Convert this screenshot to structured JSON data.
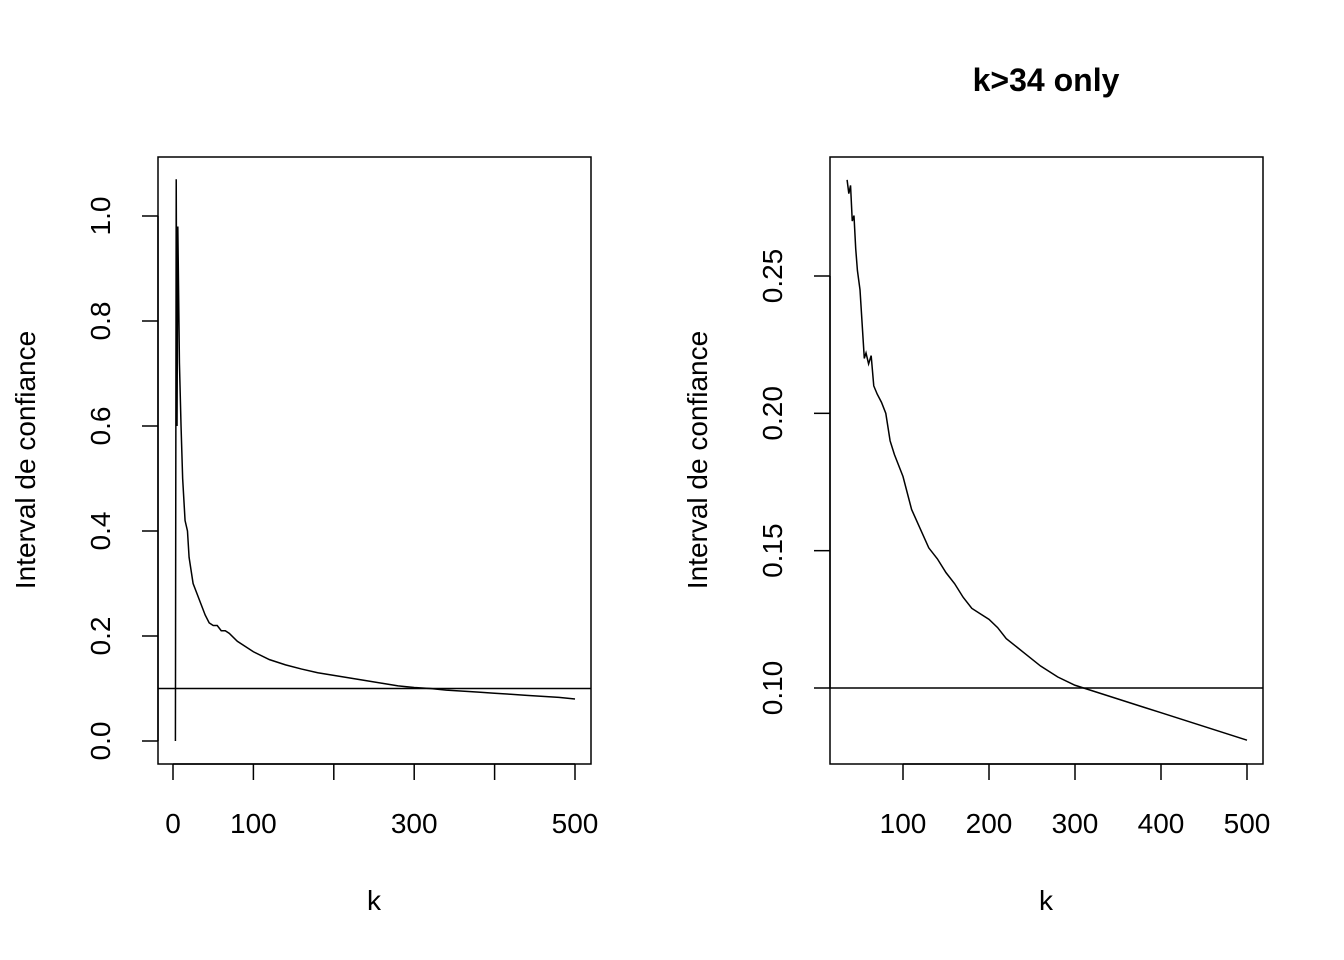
{
  "chart_data": [
    {
      "type": "line",
      "title": "",
      "xlabel": "k",
      "ylabel": "Interval de confiance",
      "xlim": [
        1,
        500
      ],
      "ylim": [
        0,
        1.07
      ],
      "xticks": [
        0,
        100,
        200,
        300,
        400,
        500
      ],
      "xtick_labels": [
        "0",
        "100",
        "",
        "300",
        "",
        "500"
      ],
      "yticks": [
        0.0,
        0.2,
        0.4,
        0.6,
        0.8,
        1.0
      ],
      "ytick_labels": [
        "0.0",
        "0.2",
        "0.4",
        "0.6",
        "0.8",
        "1.0"
      ],
      "hline": 0.1,
      "series": [
        {
          "x": [
            3,
            4,
            5,
            6,
            7,
            8,
            10,
            12,
            15,
            18,
            20,
            25,
            30,
            35,
            40,
            45,
            50,
            55,
            60,
            65,
            70,
            80,
            90,
            100,
            120,
            140,
            160,
            180,
            200,
            220,
            240,
            260,
            280,
            300,
            320,
            340,
            360,
            380,
            400,
            420,
            440,
            460,
            480,
            500
          ],
          "y": [
            0.0,
            1.07,
            0.6,
            0.98,
            0.85,
            0.72,
            0.6,
            0.5,
            0.42,
            0.4,
            0.35,
            0.3,
            0.28,
            0.26,
            0.24,
            0.225,
            0.22,
            0.22,
            0.21,
            0.21,
            0.205,
            0.19,
            0.18,
            0.17,
            0.155,
            0.145,
            0.137,
            0.13,
            0.125,
            0.12,
            0.115,
            0.11,
            0.105,
            0.102,
            0.1,
            0.097,
            0.095,
            0.093,
            0.091,
            0.089,
            0.087,
            0.085,
            0.083,
            0.08
          ]
        }
      ]
    },
    {
      "type": "line",
      "title": "k>34 only",
      "xlabel": "k",
      "ylabel": "Interval de confiance",
      "xlim": [
        35,
        500
      ],
      "ylim": [
        0.08,
        0.285
      ],
      "xticks": [
        100,
        200,
        300,
        400,
        500
      ],
      "xtick_labels": [
        "100",
        "200",
        "300",
        "400",
        "500"
      ],
      "yticks": [
        0.1,
        0.15,
        0.2,
        0.25
      ],
      "ytick_labels": [
        "0.10",
        "0.15",
        "0.20",
        "0.25"
      ],
      "hline": 0.1,
      "series": [
        {
          "x": [
            35,
            37,
            39,
            41,
            43,
            45,
            47,
            50,
            53,
            55,
            57,
            60,
            63,
            66,
            70,
            75,
            80,
            85,
            90,
            100,
            110,
            120,
            130,
            140,
            150,
            160,
            170,
            180,
            190,
            200,
            210,
            220,
            240,
            260,
            280,
            300,
            320,
            340,
            360,
            380,
            400,
            420,
            440,
            460,
            480,
            500
          ],
          "y": [
            0.285,
            0.28,
            0.283,
            0.27,
            0.272,
            0.26,
            0.252,
            0.245,
            0.23,
            0.22,
            0.222,
            0.218,
            0.221,
            0.21,
            0.207,
            0.204,
            0.2,
            0.19,
            0.185,
            0.177,
            0.165,
            0.158,
            0.151,
            0.147,
            0.142,
            0.138,
            0.133,
            0.129,
            0.127,
            0.125,
            0.122,
            0.118,
            0.113,
            0.108,
            0.104,
            0.101,
            0.099,
            0.097,
            0.095,
            0.093,
            0.091,
            0.089,
            0.087,
            0.085,
            0.083,
            0.081
          ]
        }
      ]
    }
  ]
}
